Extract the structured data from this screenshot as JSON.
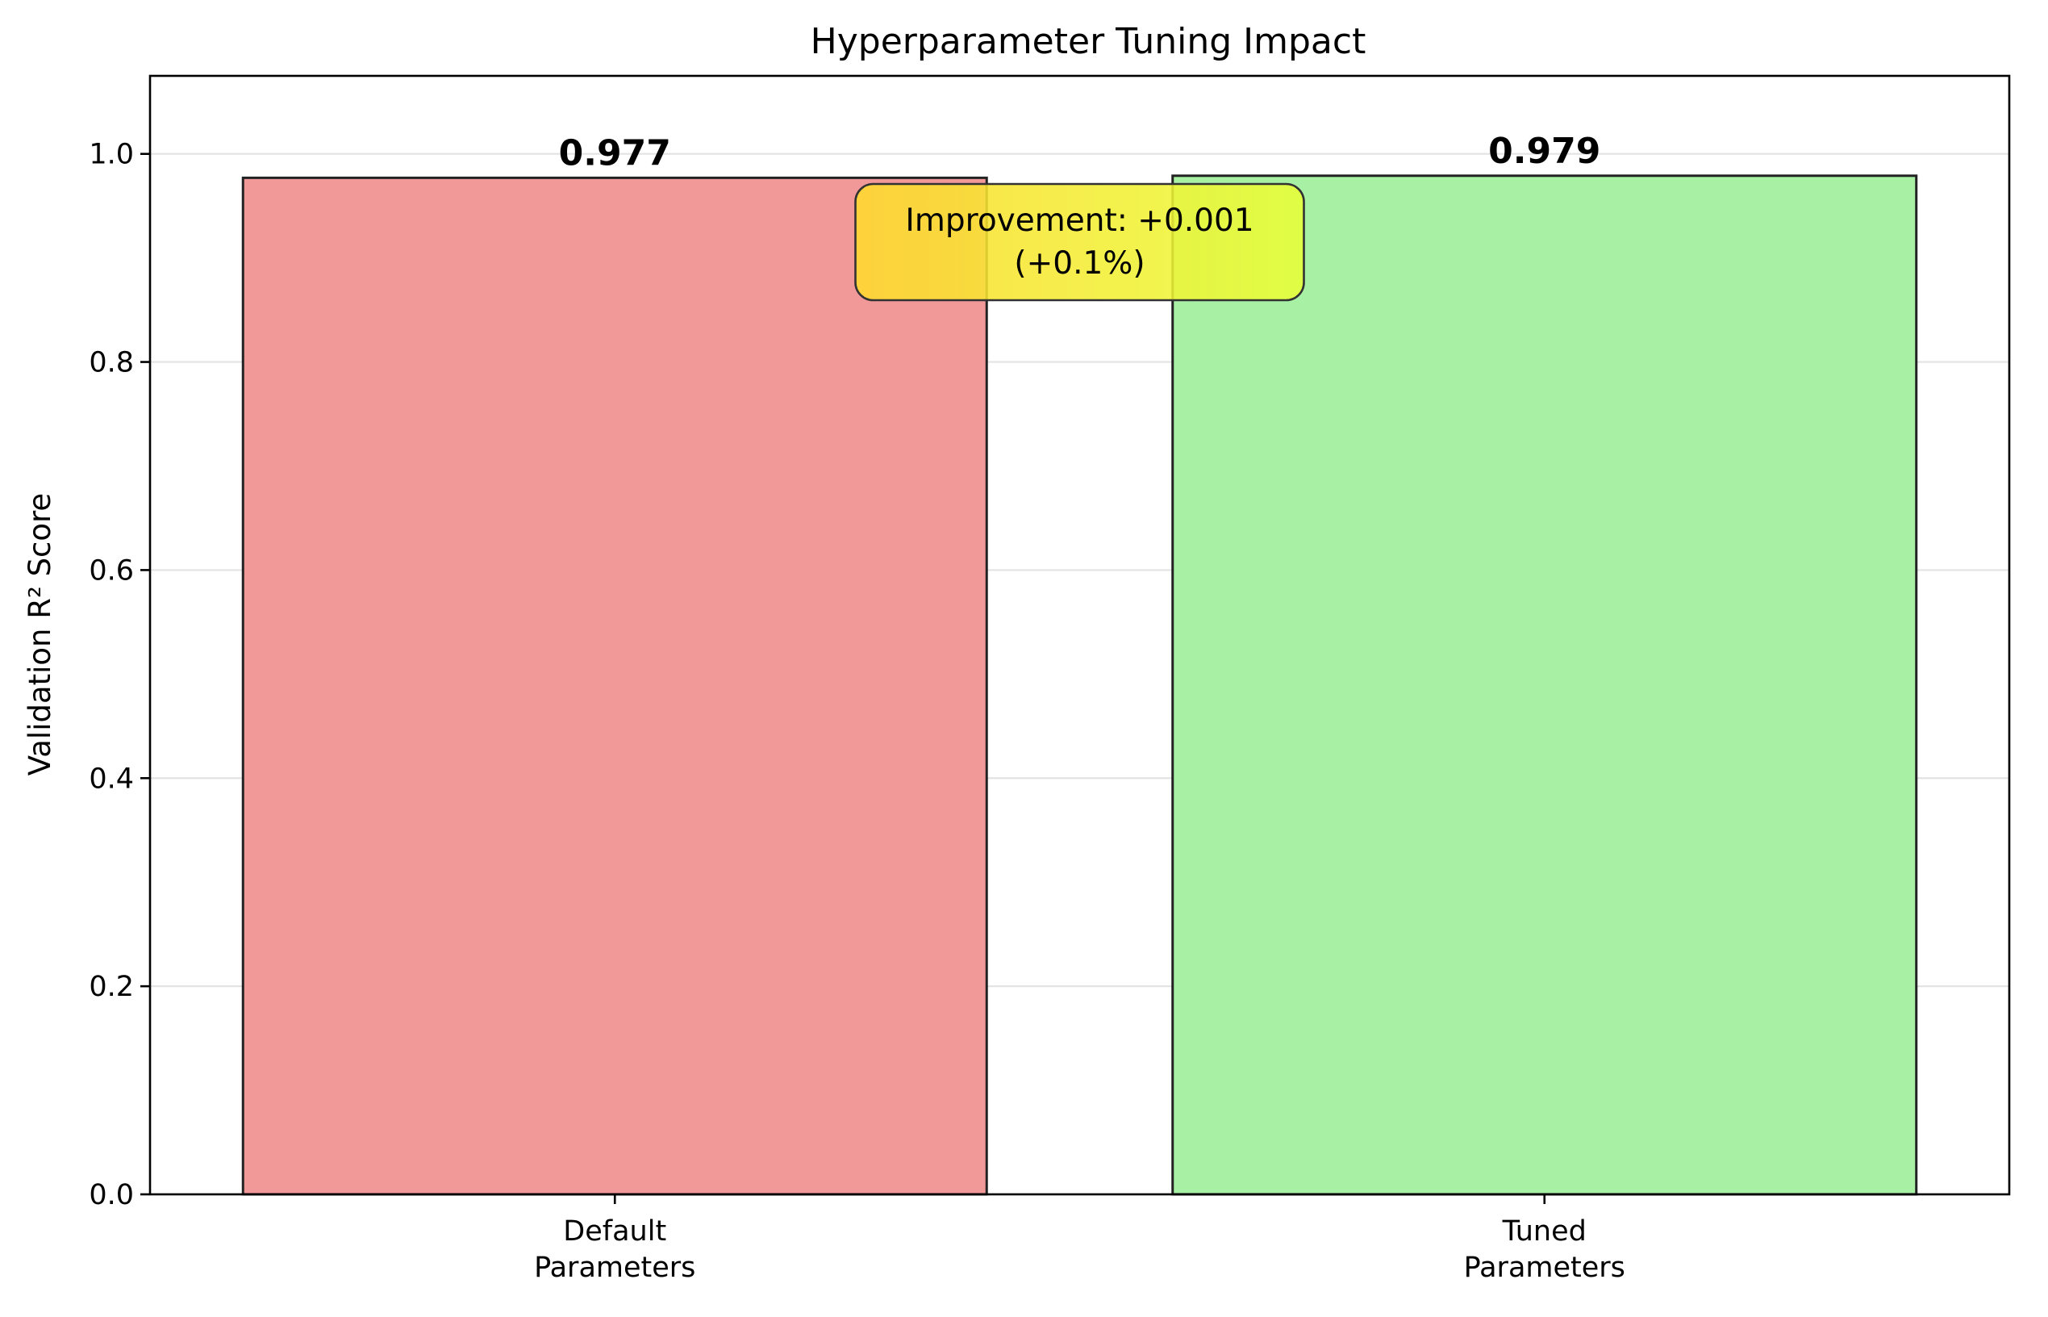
{
  "chart_data": {
    "type": "bar",
    "title": "Hyperparameter Tuning Impact",
    "xlabel": "",
    "ylabel": "Validation R² Score",
    "categories": [
      [
        "Default",
        "Parameters"
      ],
      [
        "Tuned",
        "Parameters"
      ]
    ],
    "values": [
      0.977,
      0.979
    ],
    "value_labels": [
      "0.977",
      "0.979"
    ],
    "bar_colors": [
      "#f19999",
      "#a8f0a4"
    ],
    "ylim": [
      0,
      1.075
    ],
    "yticks": [
      0.0,
      0.2,
      0.4,
      0.6,
      0.8,
      1.0
    ],
    "ytick_labels": [
      "0.0",
      "0.2",
      "0.4",
      "0.6",
      "0.8",
      "1.0"
    ],
    "grid": "y",
    "annotation": {
      "lines": [
        "Improvement: +0.001",
        "(+0.1%)"
      ],
      "box_color_left": "#ffd92e",
      "box_color_right": "#e8ff38"
    }
  }
}
